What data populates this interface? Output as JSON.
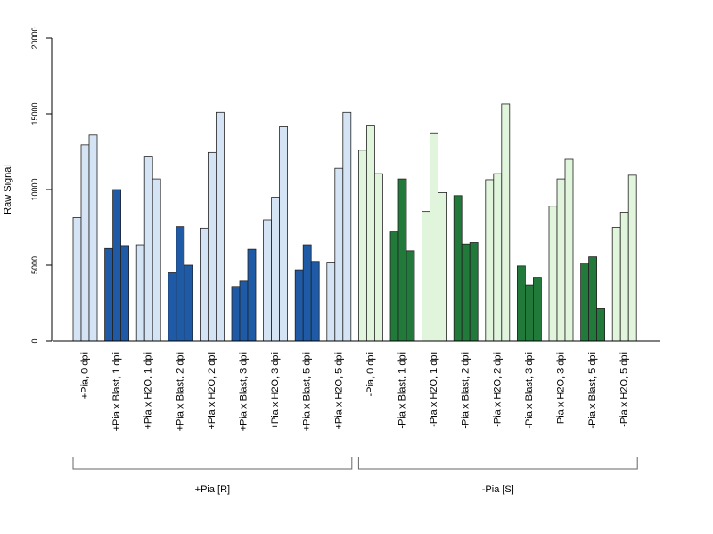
{
  "chart_data": {
    "type": "bar",
    "title": "",
    "xlabel": "",
    "ylabel": "Raw Signal",
    "ylim": [
      0,
      20000
    ],
    "yticks": [
      "0",
      "5000",
      "10000",
      "15000",
      "20000"
    ],
    "grid": false,
    "legend": "none",
    "categories": [
      "+Pia, 0 dpi",
      "+Pia x Blast, 1 dpi",
      "+Pia x H2O, 1 dpi",
      "+Pia x Blast, 2 dpi",
      "+Pia x H2O, 2 dpi",
      "+Pia x Blast, 3 dpi",
      "+Pia x H2O, 3 dpi",
      "+Pia x Blast, 5 dpi",
      "+Pia x H2O, 5 dpi",
      "-Pia, 0 dpi",
      "-Pia x Blast, 1 dpi",
      "-Pia x H2O, 1 dpi",
      "-Pia x Blast, 2 dpi",
      "-Pia x H2O, 2 dpi",
      "-Pia x Blast, 3 dpi",
      "-Pia x H2O, 3 dpi",
      "-Pia x Blast, 5 dpi",
      "-Pia x H2O, 5 dpi"
    ],
    "values": [
      [
        8150,
        12950,
        13600
      ],
      [
        6100,
        10000,
        6300
      ],
      [
        6350,
        12200,
        10700
      ],
      [
        4500,
        7550,
        5000
      ],
      [
        7450,
        12450,
        15100
      ],
      [
        3600,
        3950,
        6050
      ],
      [
        8000,
        9500,
        14150
      ],
      [
        4700,
        6350,
        5250
      ],
      [
        5200,
        11400,
        15100
      ],
      [
        12600,
        14200,
        11050
      ],
      [
        7200,
        10700,
        5950
      ],
      [
        8550,
        13750,
        9800
      ],
      [
        9600,
        6400,
        6500
      ],
      [
        10650,
        11050,
        15650
      ],
      [
        4950,
        3700,
        4200
      ],
      [
        8900,
        10700,
        12000
      ],
      [
        5150,
        5550,
        2150
      ],
      [
        7500,
        8500,
        10950
      ]
    ],
    "groups": [
      {
        "label": "+Pia [R]",
        "from": 0,
        "to": 8
      },
      {
        "label": "-Pia [S]",
        "from": 9,
        "to": 17
      }
    ],
    "colors": {
      "pia_h2o": "#d5e4f5",
      "pia_blast": "#1f5aa6",
      "nopia_h2o": "#e1f4dc",
      "nopia_blast": "#217a3a"
    },
    "category_color_keys": [
      "pia_h2o",
      "pia_blast",
      "pia_h2o",
      "pia_blast",
      "pia_h2o",
      "pia_blast",
      "pia_h2o",
      "pia_blast",
      "pia_h2o",
      "nopia_h2o",
      "nopia_blast",
      "nopia_h2o",
      "nopia_blast",
      "nopia_h2o",
      "nopia_blast",
      "nopia_h2o",
      "nopia_blast",
      "nopia_h2o"
    ]
  }
}
